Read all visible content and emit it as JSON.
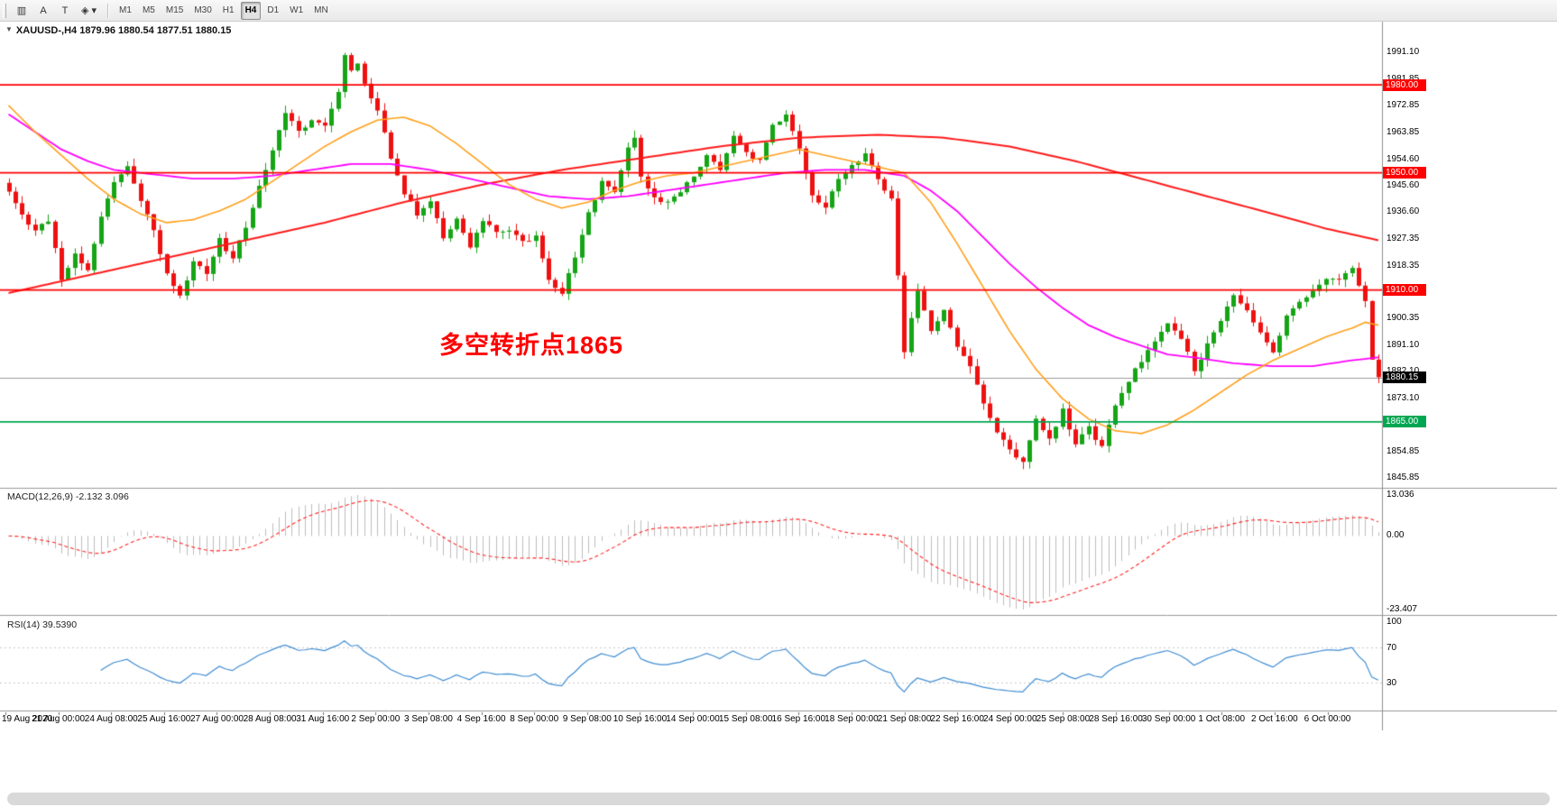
{
  "toolbar": {
    "tools": [
      {
        "name": "chart-type-tool",
        "glyph": "▥",
        "dropdown": false
      },
      {
        "name": "text-annotation-tool",
        "glyph": "A",
        "dropdown": false
      },
      {
        "name": "font-tool",
        "glyph": "T",
        "dropdown": false
      },
      {
        "name": "shapes-tool",
        "glyph": "◈",
        "dropdown": true
      }
    ],
    "timeframes": [
      {
        "label": "M1",
        "active": false
      },
      {
        "label": "M5",
        "active": false
      },
      {
        "label": "M15",
        "active": false
      },
      {
        "label": "M30",
        "active": false
      },
      {
        "label": "H1",
        "active": false
      },
      {
        "label": "H4",
        "active": true
      },
      {
        "label": "D1",
        "active": false
      },
      {
        "label": "W1",
        "active": false
      },
      {
        "label": "MN",
        "active": false
      }
    ]
  },
  "chart_data": {
    "type": "candlestick",
    "symbol": "XAUUSD",
    "period": "H4",
    "title": "XAUUSD-,H4 1879.96 1880.54 1877.51 1880.15",
    "ohlc": {
      "open": "1879.96",
      "high": "1880.54",
      "low": "1877.51",
      "close": "1880.15"
    },
    "annotation": "多空转折点1865",
    "up_color": "#15a415",
    "down_color": "#ee1111",
    "seed": 11,
    "noise_amp": 1.6,
    "wick_amp": 2.6,
    "bars": 209,
    "close_anchors": [
      [
        0,
        1944
      ],
      [
        2,
        1936
      ],
      [
        4,
        1930
      ],
      [
        6,
        1934
      ],
      [
        8,
        1914
      ],
      [
        10,
        1922
      ],
      [
        12,
        1917
      ],
      [
        14,
        1935
      ],
      [
        16,
        1947
      ],
      [
        18,
        1952
      ],
      [
        20,
        1941
      ],
      [
        22,
        1930
      ],
      [
        24,
        1916
      ],
      [
        26,
        1908
      ],
      [
        28,
        1920
      ],
      [
        30,
        1915
      ],
      [
        32,
        1927
      ],
      [
        34,
        1921
      ],
      [
        36,
        1932
      ],
      [
        38,
        1945
      ],
      [
        40,
        1958
      ],
      [
        42,
        1970
      ],
      [
        44,
        1964
      ],
      [
        46,
        1968
      ],
      [
        48,
        1966
      ],
      [
        50,
        1978
      ],
      [
        51,
        1990
      ],
      [
        52,
        1985
      ],
      [
        53,
        1988
      ],
      [
        54,
        1980
      ],
      [
        56,
        1972
      ],
      [
        58,
        1955
      ],
      [
        60,
        1943
      ],
      [
        62,
        1936
      ],
      [
        64,
        1941
      ],
      [
        66,
        1928
      ],
      [
        68,
        1934
      ],
      [
        70,
        1925
      ],
      [
        72,
        1934
      ],
      [
        74,
        1930
      ],
      [
        76,
        1931
      ],
      [
        78,
        1926
      ],
      [
        80,
        1929
      ],
      [
        82,
        1913
      ],
      [
        84,
        1909
      ],
      [
        86,
        1921
      ],
      [
        88,
        1936
      ],
      [
        90,
        1947
      ],
      [
        92,
        1944
      ],
      [
        94,
        1958
      ],
      [
        95,
        1962
      ],
      [
        96,
        1948
      ],
      [
        98,
        1941
      ],
      [
        100,
        1940
      ],
      [
        102,
        1944
      ],
      [
        104,
        1949
      ],
      [
        106,
        1956
      ],
      [
        108,
        1951
      ],
      [
        110,
        1962
      ],
      [
        112,
        1957
      ],
      [
        114,
        1954
      ],
      [
        116,
        1966
      ],
      [
        118,
        1970
      ],
      [
        120,
        1959
      ],
      [
        122,
        1943
      ],
      [
        124,
        1938
      ],
      [
        126,
        1948
      ],
      [
        128,
        1952
      ],
      [
        130,
        1956
      ],
      [
        132,
        1948
      ],
      [
        134,
        1941
      ],
      [
        135,
        1915
      ],
      [
        136,
        1889
      ],
      [
        137,
        1901
      ],
      [
        138,
        1910
      ],
      [
        140,
        1896
      ],
      [
        142,
        1903
      ],
      [
        144,
        1891
      ],
      [
        146,
        1884
      ],
      [
        148,
        1871
      ],
      [
        150,
        1861
      ],
      [
        152,
        1856
      ],
      [
        154,
        1851
      ],
      [
        156,
        1866
      ],
      [
        158,
        1859
      ],
      [
        160,
        1869
      ],
      [
        162,
        1857
      ],
      [
        164,
        1863
      ],
      [
        166,
        1856
      ],
      [
        168,
        1871
      ],
      [
        170,
        1879
      ],
      [
        172,
        1886
      ],
      [
        174,
        1893
      ],
      [
        176,
        1898
      ],
      [
        178,
        1894
      ],
      [
        180,
        1883
      ],
      [
        182,
        1891
      ],
      [
        184,
        1900
      ],
      [
        186,
        1909
      ],
      [
        188,
        1903
      ],
      [
        190,
        1896
      ],
      [
        192,
        1889
      ],
      [
        194,
        1901
      ],
      [
        196,
        1906
      ],
      [
        198,
        1910
      ],
      [
        200,
        1913
      ],
      [
        202,
        1914
      ],
      [
        204,
        1917
      ],
      [
        205,
        1912
      ],
      [
        206,
        1907
      ],
      [
        207,
        1887
      ],
      [
        208,
        1880
      ]
    ],
    "price_axis": {
      "top": 2001.6,
      "bottom": 1842.5,
      "ticks": [
        "1991.10",
        "1981.85",
        "1972.85",
        "1963.85",
        "1954.60",
        "1945.60",
        "1936.60",
        "1927.35",
        "1918.35",
        "1900.35",
        "1891.10",
        "1882.10",
        "1873.10",
        "1854.85",
        "1845.85"
      ]
    },
    "hlines": [
      {
        "price": 1980.0,
        "label": "1980.00",
        "color": "#ff0000"
      },
      {
        "price": 1950.0,
        "label": "1950.00",
        "color": "#ff0000"
      },
      {
        "price": 1910.0,
        "label": "1910.00",
        "color": "#ff0000"
      },
      {
        "price": 1865.0,
        "label": "1865.00",
        "color": "#00a651"
      }
    ],
    "bid": {
      "price": 1880.15,
      "label": "1880.15",
      "color": "#000000",
      "line_color": "#9b9b9b"
    },
    "mas": [
      {
        "name": "ma-slow",
        "color": "#ff1a1a",
        "width": 2,
        "points": [
          [
            0,
            1909
          ],
          [
            12,
            1915
          ],
          [
            24,
            1921
          ],
          [
            36,
            1927
          ],
          [
            48,
            1933
          ],
          [
            60,
            1940
          ],
          [
            72,
            1946
          ],
          [
            84,
            1951
          ],
          [
            96,
            1955
          ],
          [
            108,
            1959
          ],
          [
            120,
            1962
          ],
          [
            132,
            1963
          ],
          [
            142,
            1962
          ],
          [
            152,
            1959
          ],
          [
            162,
            1954
          ],
          [
            172,
            1948
          ],
          [
            182,
            1942
          ],
          [
            192,
            1936
          ],
          [
            200,
            1931
          ],
          [
            208,
            1927
          ]
        ]
      },
      {
        "name": "ma-mid",
        "color": "#ff00ff",
        "width": 1.8,
        "points": [
          [
            0,
            1970
          ],
          [
            4,
            1964
          ],
          [
            8,
            1958
          ],
          [
            12,
            1954
          ],
          [
            16,
            1951
          ],
          [
            20,
            1950
          ],
          [
            24,
            1949
          ],
          [
            28,
            1948
          ],
          [
            34,
            1948
          ],
          [
            40,
            1949
          ],
          [
            46,
            1951
          ],
          [
            52,
            1953
          ],
          [
            58,
            1953
          ],
          [
            64,
            1951
          ],
          [
            70,
            1948
          ],
          [
            76,
            1945
          ],
          [
            82,
            1942
          ],
          [
            88,
            1941
          ],
          [
            94,
            1942
          ],
          [
            100,
            1944
          ],
          [
            106,
            1946
          ],
          [
            112,
            1948
          ],
          [
            118,
            1950
          ],
          [
            124,
            1951
          ],
          [
            130,
            1951
          ],
          [
            136,
            1949
          ],
          [
            140,
            1944
          ],
          [
            144,
            1937
          ],
          [
            148,
            1928
          ],
          [
            152,
            1919
          ],
          [
            156,
            1911
          ],
          [
            160,
            1904
          ],
          [
            164,
            1898
          ],
          [
            168,
            1894
          ],
          [
            172,
            1891
          ],
          [
            176,
            1888
          ],
          [
            180,
            1887
          ],
          [
            186,
            1885
          ],
          [
            192,
            1884
          ],
          [
            198,
            1884
          ],
          [
            204,
            1886
          ],
          [
            208,
            1887
          ]
        ]
      },
      {
        "name": "ma-fast",
        "color": "#ff9f1a",
        "width": 1.6,
        "points": [
          [
            0,
            1973
          ],
          [
            4,
            1964
          ],
          [
            8,
            1956
          ],
          [
            12,
            1948
          ],
          [
            16,
            1941
          ],
          [
            20,
            1936
          ],
          [
            24,
            1933
          ],
          [
            28,
            1934
          ],
          [
            32,
            1937
          ],
          [
            36,
            1941
          ],
          [
            40,
            1947
          ],
          [
            44,
            1953
          ],
          [
            48,
            1959
          ],
          [
            52,
            1964
          ],
          [
            56,
            1968
          ],
          [
            60,
            1969
          ],
          [
            64,
            1966
          ],
          [
            68,
            1960
          ],
          [
            72,
            1953
          ],
          [
            76,
            1946
          ],
          [
            80,
            1941
          ],
          [
            84,
            1938
          ],
          [
            88,
            1940
          ],
          [
            92,
            1944
          ],
          [
            96,
            1947
          ],
          [
            100,
            1949
          ],
          [
            104,
            1950
          ],
          [
            108,
            1952
          ],
          [
            112,
            1954
          ],
          [
            116,
            1956
          ],
          [
            120,
            1958
          ],
          [
            124,
            1956
          ],
          [
            128,
            1954
          ],
          [
            132,
            1952
          ],
          [
            136,
            1950
          ],
          [
            140,
            1940
          ],
          [
            144,
            1926
          ],
          [
            148,
            1911
          ],
          [
            152,
            1896
          ],
          [
            156,
            1883
          ],
          [
            160,
            1873
          ],
          [
            164,
            1866
          ],
          [
            168,
            1862
          ],
          [
            172,
            1861
          ],
          [
            176,
            1864
          ],
          [
            180,
            1869
          ],
          [
            184,
            1875
          ],
          [
            188,
            1881
          ],
          [
            192,
            1886
          ],
          [
            196,
            1890
          ],
          [
            200,
            1894
          ],
          [
            204,
            1897
          ],
          [
            206,
            1899
          ],
          [
            208,
            1898
          ]
        ]
      }
    ],
    "macd": {
      "label": "MACD(12,26,9) -2.132 3.096",
      "fast": 12,
      "slow": 26,
      "signal_period": 9,
      "value": "-2.132",
      "signal_value": "3.096",
      "scale_max": 13.036,
      "scale_min": -23.407,
      "axis_labels": [
        "13.036",
        "0.00",
        "-23.407"
      ],
      "histogram_color": "#bdbdbd",
      "signal_color": "#ff2222"
    },
    "rsi": {
      "label": "RSI(14) 39.5390",
      "period": 14,
      "value": "39.5390",
      "line_color": "#3f8cd2",
      "levels": [
        70,
        30
      ],
      "axis_labels": [
        "100",
        "70",
        "30"
      ],
      "level_color": "#c9c9c9"
    },
    "time_labels": [
      "19 Aug 2020",
      "21 Aug 00:00",
      "24 Aug 08:00",
      "25 Aug 16:00",
      "27 Aug 00:00",
      "28 Aug 08:00",
      "31 Aug 16:00",
      "2 Sep 00:00",
      "3 Sep 08:00",
      "4 Sep 16:00",
      "8 Sep 00:00",
      "9 Sep 08:00",
      "10 Sep 16:00",
      "14 Sep 00:00",
      "15 Sep 08:00",
      "16 Sep 16:00",
      "18 Sep 00:00",
      "21 Sep 08:00",
      "22 Sep 16:00",
      "24 Sep 00:00",
      "25 Sep 08:00",
      "28 Sep 16:00",
      "30 Sep 00:00",
      "1 Oct 08:00",
      "2 Oct 16:00",
      "6 Oct 00:00"
    ]
  }
}
